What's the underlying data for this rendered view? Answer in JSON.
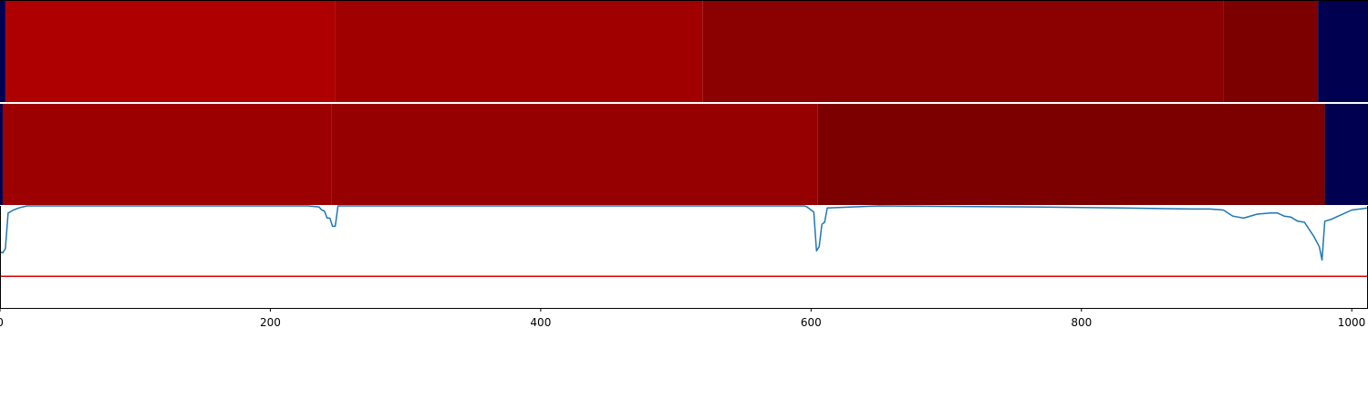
{
  "chart_data": [
    {
      "type": "heatmap",
      "panel": "top-strip",
      "xlim": [
        0,
        1012
      ],
      "segments": [
        {
          "start": 0,
          "end": 4,
          "color": "#000050"
        },
        {
          "start": 4,
          "end": 248,
          "color": "#ae0000"
        },
        {
          "start": 248,
          "end": 520,
          "color": "#a00000"
        },
        {
          "start": 520,
          "end": 905,
          "color": "#8b0000"
        },
        {
          "start": 905,
          "end": 975,
          "color": "#7d0000"
        },
        {
          "start": 975,
          "end": 1012,
          "color": "#000050"
        }
      ]
    },
    {
      "type": "heatmap",
      "panel": "middle-strip",
      "xlim": [
        0,
        1012
      ],
      "segments": [
        {
          "start": 0,
          "end": 2,
          "color": "#000050"
        },
        {
          "start": 2,
          "end": 245,
          "color": "#9c0000"
        },
        {
          "start": 245,
          "end": 605,
          "color": "#970000"
        },
        {
          "start": 605,
          "end": 980,
          "color": "#7c0000"
        },
        {
          "start": 980,
          "end": 1012,
          "color": "#000050"
        }
      ]
    },
    {
      "type": "line",
      "panel": "bottom-line",
      "xlim": [
        0,
        1012
      ],
      "ylim": [
        0,
        1
      ],
      "threshold": 0.31,
      "line_color": "#1f77b4",
      "threshold_color": "#dd0000",
      "x": [
        0,
        2,
        4,
        6,
        10,
        14,
        20,
        30,
        50,
        80,
        200,
        228,
        236,
        238,
        240,
        242,
        244,
        246,
        248,
        250,
        300,
        500,
        595,
        597,
        600,
        602,
        604,
        606,
        608,
        610,
        612,
        650,
        760,
        830,
        880,
        895,
        905,
        912,
        920,
        930,
        940,
        945,
        950,
        955,
        960,
        965,
        972,
        976,
        978,
        980,
        985,
        990,
        1000,
        1012
      ],
      "y": [
        0.55,
        0.54,
        0.58,
        0.93,
        0.96,
        0.98,
        1.0,
        1.0,
        1.0,
        1.0,
        1.0,
        1.0,
        0.99,
        0.96,
        0.95,
        0.88,
        0.88,
        0.8,
        0.8,
        1.0,
        1.0,
        1.0,
        1.0,
        0.99,
        0.96,
        0.94,
        0.56,
        0.6,
        0.82,
        0.84,
        0.98,
        1.0,
        0.99,
        0.98,
        0.97,
        0.97,
        0.96,
        0.9,
        0.88,
        0.92,
        0.93,
        0.93,
        0.9,
        0.89,
        0.85,
        0.84,
        0.7,
        0.6,
        0.47,
        0.85,
        0.87,
        0.9,
        0.96,
        0.98
      ],
      "xticks": [
        0,
        200,
        400,
        600,
        800,
        1000
      ],
      "xtick_labels": [
        "0",
        "200",
        "400",
        "600",
        "800",
        "1000"
      ]
    }
  ]
}
